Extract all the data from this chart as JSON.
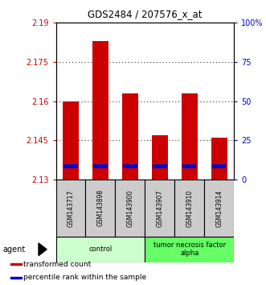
{
  "title": "GDS2484 / 207576_x_at",
  "samples": [
    "GSM143717",
    "GSM143898",
    "GSM143900",
    "GSM143907",
    "GSM143910",
    "GSM143914"
  ],
  "transformed_counts": [
    2.16,
    2.183,
    2.163,
    2.147,
    2.163,
    2.146
  ],
  "percentile_ranks": [
    2.135,
    2.135,
    2.135,
    2.135,
    2.135,
    2.135
  ],
  "ylim_left": [
    2.13,
    2.19
  ],
  "ylim_right": [
    0,
    100
  ],
  "yticks_left": [
    2.13,
    2.145,
    2.16,
    2.175,
    2.19
  ],
  "yticks_right": [
    0,
    25,
    50,
    75,
    100
  ],
  "ytick_labels_left": [
    "2.13",
    "2.145",
    "2.16",
    "2.175",
    "2.19"
  ],
  "ytick_labels_right": [
    "0",
    "25",
    "50",
    "75",
    "100%"
  ],
  "bar_color": "#cc0000",
  "percentile_color": "#0000cc",
  "groups": [
    {
      "label": "control",
      "indices": [
        0,
        1,
        2
      ],
      "color": "#ccffcc"
    },
    {
      "label": "tumor necrosis factor\nalpha",
      "indices": [
        3,
        4,
        5
      ],
      "color": "#66ff66"
    }
  ],
  "agent_label": "agent",
  "legend_items": [
    {
      "label": "transformed count",
      "color": "#cc0000"
    },
    {
      "label": "percentile rank within the sample",
      "color": "#0000cc"
    }
  ],
  "bar_bottom": 2.13,
  "bar_width": 0.55,
  "bg_color": "#ffffff",
  "plot_bg_color": "#ffffff",
  "sample_box_color": "#cccccc"
}
